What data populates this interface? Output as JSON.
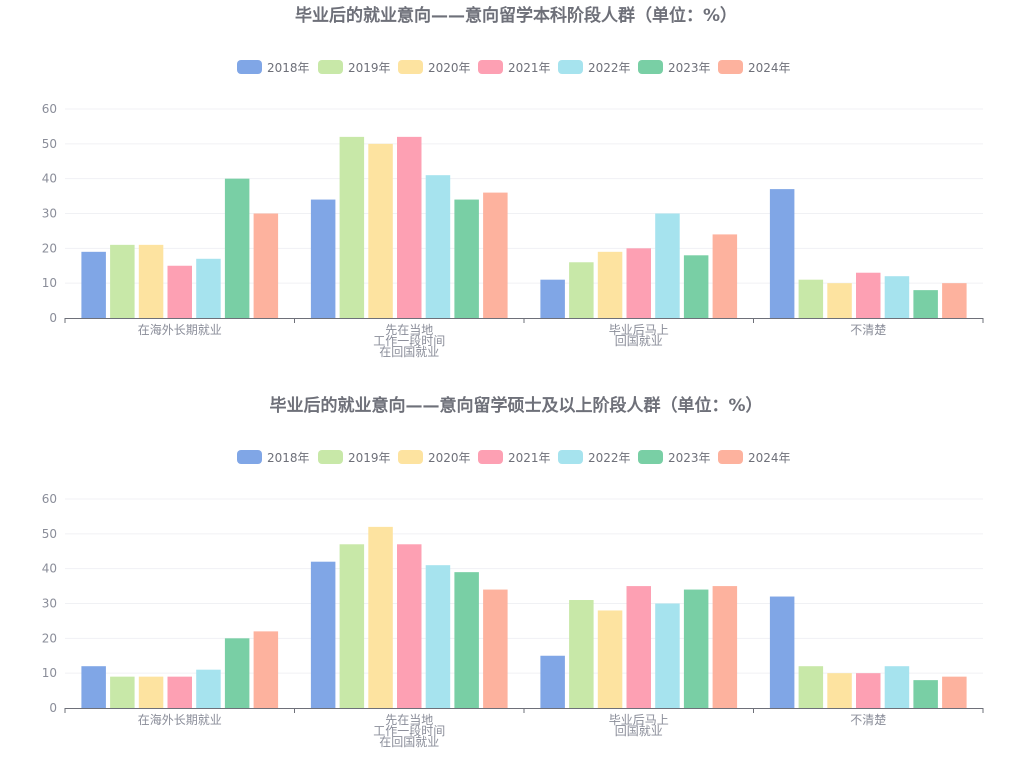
{
  "chart_data": [
    {
      "type": "bar",
      "title": "毕业后的就业意向——意向留学本科阶段人群（单位：%）",
      "categories": [
        [
          "在海外长期就业"
        ],
        [
          "先在当地",
          "工作一段时间",
          "在回国就业"
        ],
        [
          "毕业后马上",
          "回国就业"
        ],
        [
          "不清楚"
        ]
      ],
      "ylim": [
        0,
        60
      ],
      "yticks": [
        0,
        10,
        20,
        30,
        40,
        50,
        60
      ],
      "grid": true,
      "legend_position": "top-center",
      "series": [
        {
          "name": "2018年",
          "color": "#80a6e6",
          "values": [
            19,
            34,
            11,
            37
          ]
        },
        {
          "name": "2019年",
          "color": "#c8e8a8",
          "values": [
            21,
            52,
            16,
            11
          ]
        },
        {
          "name": "2020年",
          "color": "#fde3a0",
          "values": [
            21,
            50,
            19,
            10
          ]
        },
        {
          "name": "2021年",
          "color": "#fda0b3",
          "values": [
            15,
            52,
            20,
            13
          ]
        },
        {
          "name": "2022年",
          "color": "#a6e3ee",
          "values": [
            17,
            41,
            30,
            12
          ]
        },
        {
          "name": "2023年",
          "color": "#79cfa5",
          "values": [
            40,
            34,
            18,
            8
          ]
        },
        {
          "name": "2024年",
          "color": "#fdb29e",
          "values": [
            30,
            36,
            24,
            10
          ]
        }
      ]
    },
    {
      "type": "bar",
      "title": "毕业后的就业意向——意向留学硕士及以上阶段人群（单位：%）",
      "categories": [
        [
          "在海外长期就业"
        ],
        [
          "先在当地",
          "工作一段时间",
          "在回国就业"
        ],
        [
          "毕业后马上",
          "回国就业"
        ],
        [
          "不清楚"
        ]
      ],
      "ylim": [
        0,
        60
      ],
      "yticks": [
        0,
        10,
        20,
        30,
        40,
        50,
        60
      ],
      "grid": true,
      "legend_position": "top-center",
      "series": [
        {
          "name": "2018年",
          "color": "#80a6e6",
          "values": [
            12,
            42,
            15,
            32
          ]
        },
        {
          "name": "2019年",
          "color": "#c8e8a8",
          "values": [
            9,
            47,
            31,
            12
          ]
        },
        {
          "name": "2020年",
          "color": "#fde3a0",
          "values": [
            9,
            52,
            28,
            10
          ]
        },
        {
          "name": "2021年",
          "color": "#fda0b3",
          "values": [
            9,
            47,
            35,
            10
          ]
        },
        {
          "name": "2022年",
          "color": "#a6e3ee",
          "values": [
            11,
            41,
            30,
            12
          ]
        },
        {
          "name": "2023年",
          "color": "#79cfa5",
          "values": [
            20,
            39,
            34,
            8
          ]
        },
        {
          "name": "2024年",
          "color": "#fdb29e",
          "values": [
            22,
            34,
            35,
            9
          ]
        }
      ]
    }
  ]
}
